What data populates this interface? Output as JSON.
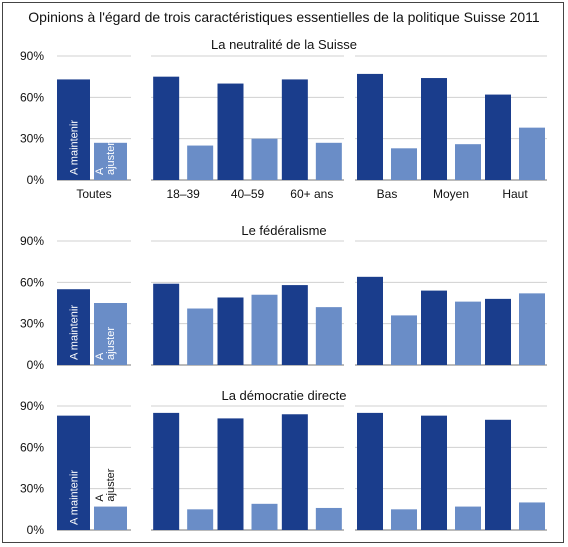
{
  "colors": {
    "maintenir": "#1a3d8c",
    "ajuster": "#6a8dc7",
    "grid": "#d0d0d0",
    "frame": "#444444"
  },
  "chart_data": {
    "type": "bar",
    "title": "Opinions à l'égard de trois caractéristiques essentielles de la politique Suisse 2011",
    "ylim": [
      0,
      90
    ],
    "yticks": [
      "0%",
      "30%",
      "60%",
      "90%"
    ],
    "grid": true,
    "group_labels": [
      [
        "Toutes"
      ],
      [
        "18–39",
        "40–59",
        "60+ ans"
      ],
      [
        "Bas",
        "Moyen",
        "Haut"
      ]
    ],
    "series_labels": {
      "maintenir": "A maintenir",
      "ajuster": "A ajuster"
    },
    "panels": [
      {
        "title": "La neutralité de la Suisse",
        "maintenir": [
          73,
          75,
          70,
          73,
          77,
          74,
          62
        ],
        "ajuster": [
          27,
          25,
          30,
          27,
          23,
          26,
          38
        ]
      },
      {
        "title": "Le fédéralisme",
        "maintenir": [
          55,
          59,
          49,
          58,
          64,
          54,
          48
        ],
        "ajuster": [
          45,
          41,
          51,
          42,
          36,
          46,
          52
        ]
      },
      {
        "title": "La démocratie directe",
        "maintenir": [
          83,
          85,
          81,
          84,
          85,
          83,
          80
        ],
        "ajuster": [
          17,
          15,
          19,
          16,
          15,
          17,
          20
        ]
      }
    ]
  }
}
